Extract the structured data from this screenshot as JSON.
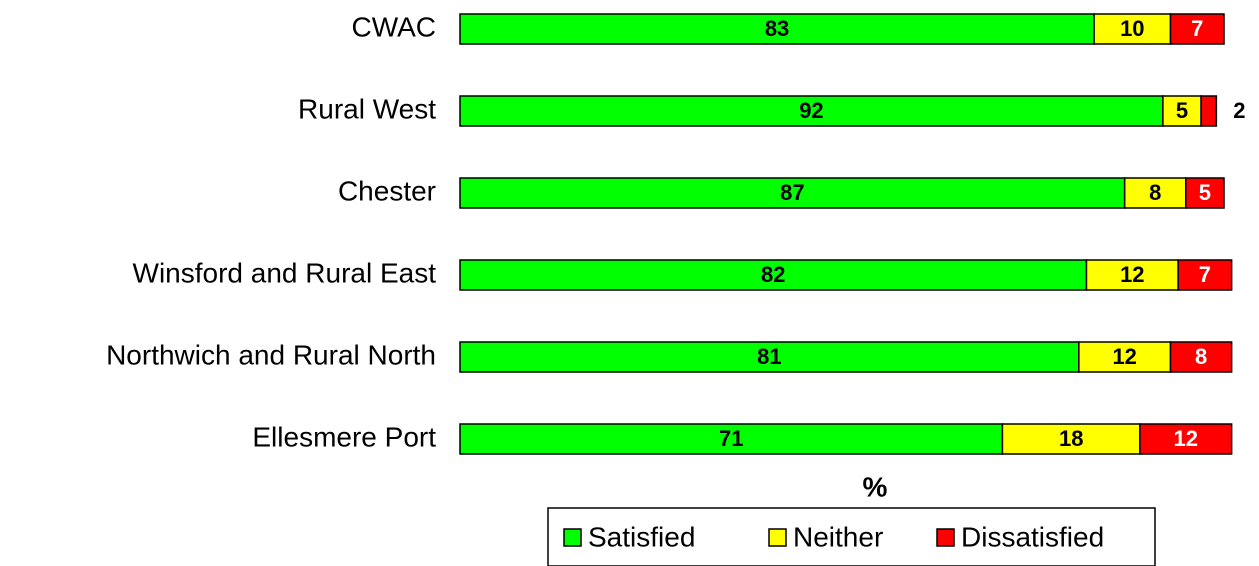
{
  "chart_data": {
    "type": "stacked-bar-horizontal",
    "categories": [
      "CWAC",
      "Rural West",
      "Chester",
      "Winsford and Rural East",
      "Northwich and Rural North",
      "Ellesmere Port"
    ],
    "series": [
      {
        "name": "Satisfied",
        "color": "#00ff00",
        "values": [
          83,
          92,
          87,
          82,
          81,
          71
        ]
      },
      {
        "name": "Neither",
        "color": "#ffff00",
        "values": [
          10,
          5,
          8,
          12,
          12,
          18
        ]
      },
      {
        "name": "Dissatisfied",
        "color": "#ff0000",
        "values": [
          7,
          2,
          5,
          7,
          8,
          12
        ]
      }
    ],
    "xlim": [
      0,
      100
    ],
    "x_label": "%",
    "legend": "bottom"
  }
}
